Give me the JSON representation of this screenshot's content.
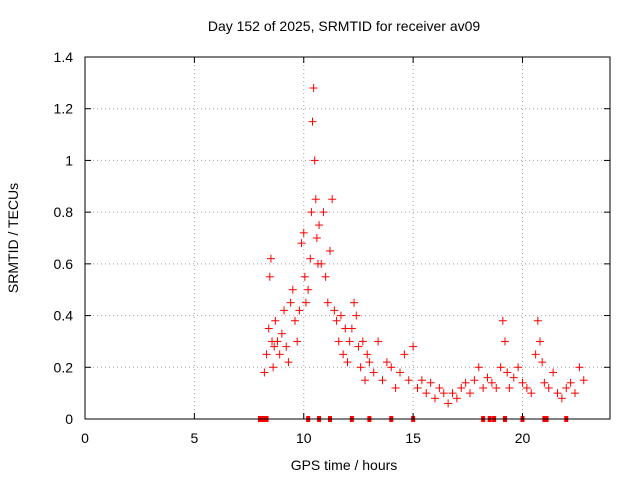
{
  "chart_data": {
    "type": "scatter",
    "title": "Day 152 of 2025, SRMTID for receiver av09",
    "xlabel": "GPS time / hours",
    "ylabel": "SRMTID / TECUs",
    "xlim": [
      0,
      24
    ],
    "ylim": [
      0,
      1.4
    ],
    "xticks": [
      0,
      5,
      10,
      15,
      20
    ],
    "xtick_labels": [
      "0",
      "5",
      "10",
      "15",
      "20"
    ],
    "yticks": [
      0,
      0.2,
      0.4,
      0.6,
      0.8,
      1.0,
      1.2,
      1.4
    ],
    "ytick_labels": [
      "0",
      "0.2",
      "0.4",
      "0.6",
      "0.8",
      "1",
      "1.2",
      "1.4"
    ],
    "grid": true,
    "marker": "+",
    "colors": {
      "series": "#ff0000",
      "grid": "#a0a0a0",
      "axis": "#000000"
    },
    "series": [
      {
        "name": "SRMTID",
        "x": [
          8.2,
          8.3,
          8.4,
          8.45,
          8.5,
          8.55,
          8.6,
          8.65,
          8.7,
          8.8,
          8.9,
          9.0,
          9.1,
          9.2,
          9.3,
          9.4,
          9.5,
          9.6,
          9.7,
          9.8,
          9.9,
          10.0,
          10.05,
          10.1,
          10.2,
          10.3,
          10.35,
          10.4,
          10.45,
          10.5,
          10.55,
          10.6,
          10.65,
          10.7,
          10.8,
          10.9,
          11.0,
          11.1,
          11.2,
          11.3,
          11.4,
          11.5,
          11.6,
          11.7,
          11.8,
          11.9,
          12.0,
          12.1,
          12.2,
          12.3,
          12.4,
          12.5,
          12.6,
          12.7,
          12.8,
          12.9,
          13.0,
          13.2,
          13.4,
          13.6,
          13.8,
          14.0,
          14.2,
          14.4,
          14.6,
          14.8,
          15.0,
          15.2,
          15.4,
          15.6,
          15.8,
          16.0,
          16.2,
          16.4,
          16.6,
          16.8,
          17.0,
          17.2,
          17.4,
          17.6,
          17.8,
          18.0,
          18.2,
          18.4,
          18.6,
          18.8,
          19.0,
          19.1,
          19.2,
          19.3,
          19.4,
          19.6,
          19.8,
          20.0,
          20.2,
          20.4,
          20.6,
          20.7,
          20.8,
          20.9,
          21.0,
          21.2,
          21.4,
          21.6,
          21.8,
          22.0,
          22.2,
          22.4,
          22.6,
          22.8
        ],
        "y": [
          0.18,
          0.25,
          0.35,
          0.55,
          0.62,
          0.3,
          0.2,
          0.28,
          0.38,
          0.3,
          0.25,
          0.33,
          0.42,
          0.28,
          0.22,
          0.45,
          0.5,
          0.38,
          0.3,
          0.42,
          0.68,
          0.72,
          0.55,
          0.45,
          0.5,
          0.62,
          0.8,
          1.15,
          1.28,
          1.0,
          0.85,
          0.7,
          0.6,
          0.75,
          0.6,
          0.8,
          0.55,
          0.45,
          0.65,
          0.85,
          0.42,
          0.38,
          0.3,
          0.4,
          0.25,
          0.35,
          0.22,
          0.3,
          0.35,
          0.45,
          0.4,
          0.28,
          0.2,
          0.3,
          0.15,
          0.25,
          0.22,
          0.18,
          0.3,
          0.15,
          0.22,
          0.2,
          0.12,
          0.18,
          0.25,
          0.15,
          0.28,
          0.12,
          0.15,
          0.1,
          0.14,
          0.08,
          0.12,
          0.1,
          0.06,
          0.1,
          0.08,
          0.12,
          0.14,
          0.1,
          0.15,
          0.2,
          0.12,
          0.16,
          0.14,
          0.12,
          0.2,
          0.38,
          0.3,
          0.18,
          0.12,
          0.16,
          0.2,
          0.14,
          0.12,
          0.1,
          0.25,
          0.38,
          0.3,
          0.22,
          0.14,
          0.12,
          0.18,
          0.1,
          0.08,
          0.12,
          0.14,
          0.1,
          0.2,
          0.15
        ]
      }
    ],
    "baseline_markers_x": [
      8.0,
      8.1,
      8.2,
      8.3,
      10.2,
      10.7,
      11.2,
      12.2,
      13.0,
      14.0,
      15.0,
      18.2,
      18.5,
      18.7,
      19.2,
      20.0,
      21.0,
      21.1,
      22.0
    ]
  }
}
